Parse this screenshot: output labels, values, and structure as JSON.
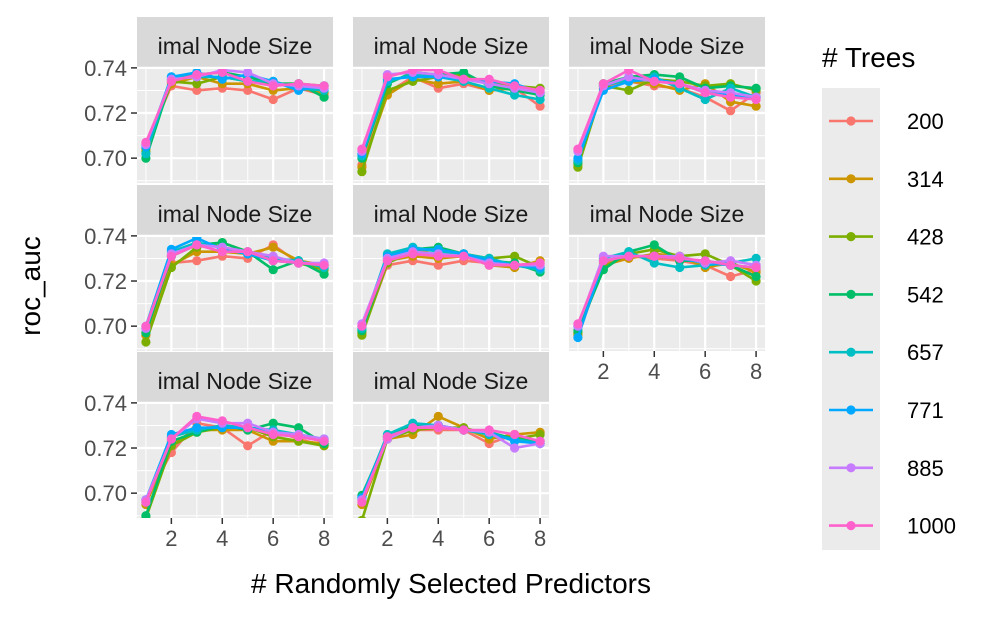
{
  "chart_data": {
    "type": "line",
    "facet_strip_label": "imal Node Size",
    "xlabel": "# Randomly Selected Predictors",
    "ylabel": "roc_auc",
    "x": [
      1,
      2,
      3,
      4,
      5,
      6,
      7,
      8
    ],
    "x_ticks": [
      "2",
      "4",
      "6",
      "8"
    ],
    "y_ticks": [
      "0.70",
      "0.72",
      "0.74"
    ],
    "ylim": [
      0.689,
      0.7395
    ],
    "xlim": [
      0.65,
      8.35
    ],
    "grid": true,
    "legend": {
      "title": "# Trees",
      "placement": "right",
      "entries": [
        "200",
        "314",
        "428",
        "542",
        "657",
        "771",
        "885",
        "1000"
      ]
    },
    "series_colors": [
      "#F8766D",
      "#CD9600",
      "#7CAE00",
      "#00BE67",
      "#00BFC4",
      "#00A9FF",
      "#C77CFF",
      "#FF61CC"
    ],
    "panels": [
      {
        "series": [
          {
            "name": "200",
            "values": [
              0.706,
              0.732,
              0.73,
              0.731,
              0.73,
              0.726,
              0.731,
              0.728
            ]
          },
          {
            "name": "314",
            "values": [
              0.704,
              0.733,
              0.736,
              0.733,
              0.733,
              0.73,
              0.731,
              0.729
            ]
          },
          {
            "name": "428",
            "values": [
              0.703,
              0.734,
              0.733,
              0.736,
              0.734,
              0.733,
              0.733,
              0.732
            ]
          },
          {
            "name": "542",
            "values": [
              0.7,
              0.735,
              0.737,
              0.738,
              0.736,
              0.733,
              0.733,
              0.727
            ]
          },
          {
            "name": "657",
            "values": [
              0.702,
              0.736,
              0.736,
              0.736,
              0.734,
              0.734,
              0.731,
              0.73
            ]
          },
          {
            "name": "771",
            "values": [
              0.705,
              0.736,
              0.738,
              0.735,
              0.737,
              0.734,
              0.73,
              0.732
            ]
          },
          {
            "name": "885",
            "values": [
              0.706,
              0.735,
              0.736,
              0.739,
              0.738,
              0.733,
              0.732,
              0.731
            ]
          },
          {
            "name": "1000",
            "values": [
              0.707,
              0.734,
              0.737,
              0.738,
              0.734,
              0.732,
              0.733,
              0.732
            ]
          }
        ]
      },
      {
        "series": [
          {
            "name": "200",
            "values": [
              0.697,
              0.729,
              0.736,
              0.731,
              0.733,
              0.73,
              0.731,
              0.723
            ]
          },
          {
            "name": "314",
            "values": [
              0.696,
              0.728,
              0.735,
              0.733,
              0.734,
              0.73,
              0.731,
              0.729
            ]
          },
          {
            "name": "428",
            "values": [
              0.694,
              0.73,
              0.734,
              0.736,
              0.737,
              0.733,
              0.732,
              0.731
            ]
          },
          {
            "name": "542",
            "values": [
              0.7,
              0.733,
              0.738,
              0.737,
              0.738,
              0.732,
              0.73,
              0.728
            ]
          },
          {
            "name": "657",
            "values": [
              0.701,
              0.734,
              0.737,
              0.736,
              0.734,
              0.731,
              0.728,
              0.726
            ]
          },
          {
            "name": "771",
            "values": [
              0.702,
              0.735,
              0.736,
              0.736,
              0.735,
              0.734,
              0.733,
              0.729
            ]
          },
          {
            "name": "885",
            "values": [
              0.703,
              0.737,
              0.738,
              0.737,
              0.735,
              0.733,
              0.731,
              0.729
            ]
          },
          {
            "name": "1000",
            "values": [
              0.704,
              0.736,
              0.739,
              0.739,
              0.735,
              0.735,
              0.732,
              0.73
            ]
          }
        ]
      },
      {
        "series": [
          {
            "name": "200",
            "values": [
              0.698,
              0.731,
              0.734,
              0.732,
              0.731,
              0.727,
              0.721,
              0.729
            ]
          },
          {
            "name": "314",
            "values": [
              0.697,
              0.733,
              0.734,
              0.733,
              0.73,
              0.733,
              0.725,
              0.723
            ]
          },
          {
            "name": "428",
            "values": [
              0.696,
              0.732,
              0.73,
              0.735,
              0.734,
              0.732,
              0.733,
              0.73
            ]
          },
          {
            "name": "542",
            "values": [
              0.698,
              0.733,
              0.736,
              0.737,
              0.736,
              0.731,
              0.732,
              0.731
            ]
          },
          {
            "name": "657",
            "values": [
              0.699,
              0.732,
              0.735,
              0.736,
              0.731,
              0.726,
              0.731,
              0.727
            ]
          },
          {
            "name": "771",
            "values": [
              0.7,
              0.73,
              0.734,
              0.735,
              0.733,
              0.729,
              0.728,
              0.727
            ]
          },
          {
            "name": "885",
            "values": [
              0.703,
              0.732,
              0.736,
              0.734,
              0.733,
              0.73,
              0.729,
              0.727
            ]
          },
          {
            "name": "1000",
            "values": [
              0.704,
              0.733,
              0.739,
              0.734,
              0.733,
              0.729,
              0.727,
              0.726
            ]
          }
        ]
      },
      {
        "series": [
          {
            "name": "200",
            "values": [
              0.697,
              0.728,
              0.729,
              0.731,
              0.73,
              0.736,
              0.728,
              0.727
            ]
          },
          {
            "name": "314",
            "values": [
              0.696,
              0.727,
              0.733,
              0.733,
              0.732,
              0.735,
              0.729,
              0.727
            ]
          },
          {
            "name": "428",
            "values": [
              0.693,
              0.726,
              0.735,
              0.737,
              0.733,
              0.729,
              0.728,
              0.725
            ]
          },
          {
            "name": "542",
            "values": [
              0.697,
              0.731,
              0.736,
              0.737,
              0.733,
              0.725,
              0.729,
              0.723
            ]
          },
          {
            "name": "657",
            "values": [
              0.699,
              0.733,
              0.737,
              0.735,
              0.732,
              0.73,
              0.729,
              0.726
            ]
          },
          {
            "name": "771",
            "values": [
              0.7,
              0.734,
              0.739,
              0.734,
              0.732,
              0.729,
              0.728,
              0.727
            ]
          },
          {
            "name": "885",
            "values": [
              0.699,
              0.732,
              0.736,
              0.735,
              0.733,
              0.731,
              0.728,
              0.728
            ]
          },
          {
            "name": "1000",
            "values": [
              0.7,
              0.731,
              0.736,
              0.733,
              0.733,
              0.729,
              0.728,
              0.727
            ]
          }
        ]
      },
      {
        "series": [
          {
            "name": "200",
            "values": [
              0.697,
              0.727,
              0.729,
              0.727,
              0.729,
              0.728,
              0.727,
              0.728
            ]
          },
          {
            "name": "314",
            "values": [
              0.697,
              0.729,
              0.731,
              0.73,
              0.731,
              0.727,
              0.726,
              0.729
            ]
          },
          {
            "name": "428",
            "values": [
              0.696,
              0.728,
              0.733,
              0.734,
              0.732,
              0.73,
              0.731,
              0.726
            ]
          },
          {
            "name": "542",
            "values": [
              0.698,
              0.73,
              0.734,
              0.735,
              0.732,
              0.729,
              0.728,
              0.724
            ]
          },
          {
            "name": "657",
            "values": [
              0.699,
              0.732,
              0.735,
              0.733,
              0.732,
              0.73,
              0.727,
              0.725
            ]
          },
          {
            "name": "771",
            "values": [
              0.7,
              0.731,
              0.734,
              0.734,
              0.732,
              0.729,
              0.727,
              0.726
            ]
          },
          {
            "name": "885",
            "values": [
              0.701,
              0.73,
              0.733,
              0.732,
              0.731,
              0.728,
              0.727,
              0.727
            ]
          },
          {
            "name": "1000",
            "values": [
              0.7,
              0.729,
              0.732,
              0.731,
              0.731,
              0.727,
              0.727,
              0.728
            ]
          }
        ]
      },
      {
        "series": [
          {
            "name": "200",
            "values": [
              0.697,
              0.728,
              0.731,
              0.73,
              0.729,
              0.727,
              0.722,
              0.725
            ]
          },
          {
            "name": "314",
            "values": [
              0.696,
              0.727,
              0.73,
              0.732,
              0.731,
              0.726,
              0.728,
              0.724
            ]
          },
          {
            "name": "428",
            "values": [
              0.697,
              0.726,
              0.732,
              0.734,
              0.731,
              0.732,
              0.727,
              0.72
            ]
          },
          {
            "name": "542",
            "values": [
              0.698,
              0.725,
              0.733,
              0.736,
              0.729,
              0.729,
              0.727,
              0.722
            ]
          },
          {
            "name": "657",
            "values": [
              0.7,
              0.73,
              0.733,
              0.728,
              0.726,
              0.727,
              0.728,
              0.73
            ]
          },
          {
            "name": "771",
            "values": [
              0.695,
              0.729,
              0.731,
              0.731,
              0.73,
              0.728,
              0.727,
              0.726
            ]
          },
          {
            "name": "885",
            "values": [
              0.7,
              0.731,
              0.731,
              0.731,
              0.731,
              0.728,
              0.729,
              0.727
            ]
          },
          {
            "name": "1000",
            "values": [
              0.701,
              0.729,
              0.731,
              0.731,
              0.73,
              0.729,
              0.727,
              0.726
            ]
          }
        ]
      },
      {
        "series": [
          {
            "name": "200",
            "values": [
              0.697,
              0.718,
              0.731,
              0.729,
              0.721,
              0.728,
              0.724,
              0.721
            ]
          },
          {
            "name": "314",
            "values": [
              0.695,
              0.722,
              0.728,
              0.728,
              0.728,
              0.723,
              0.723,
              0.722
            ]
          },
          {
            "name": "428",
            "values": [
              0.689,
              0.721,
              0.727,
              0.729,
              0.729,
              0.725,
              0.723,
              0.721
            ]
          },
          {
            "name": "542",
            "values": [
              0.69,
              0.723,
              0.727,
              0.73,
              0.728,
              0.731,
              0.729,
              0.722
            ]
          },
          {
            "name": "657",
            "values": [
              0.696,
              0.725,
              0.728,
              0.73,
              0.729,
              0.728,
              0.726,
              0.723
            ]
          },
          {
            "name": "771",
            "values": [
              0.697,
              0.726,
              0.729,
              0.729,
              0.729,
              0.727,
              0.726,
              0.724
            ]
          },
          {
            "name": "885",
            "values": [
              0.697,
              0.724,
              0.733,
              0.731,
              0.731,
              0.727,
              0.726,
              0.724
            ]
          },
          {
            "name": "1000",
            "values": [
              0.696,
              0.724,
              0.734,
              0.732,
              0.729,
              0.726,
              0.725,
              0.723
            ]
          }
        ]
      },
      {
        "series": [
          {
            "name": "200",
            "values": [
              0.697,
              0.725,
              0.728,
              0.728,
              0.728,
              0.722,
              0.726,
              0.722
            ]
          },
          {
            "name": "314",
            "values": [
              0.695,
              0.724,
              0.726,
              0.734,
              0.729,
              0.724,
              0.726,
              0.727
            ]
          },
          {
            "name": "428",
            "values": [
              0.688,
              0.724,
              0.728,
              0.729,
              0.729,
              0.726,
              0.724,
              0.726
            ]
          },
          {
            "name": "542",
            "values": [
              0.699,
              0.725,
              0.73,
              0.73,
              0.728,
              0.727,
              0.724,
              0.723
            ]
          },
          {
            "name": "657",
            "values": [
              0.698,
              0.726,
              0.731,
              0.73,
              0.728,
              0.726,
              0.724,
              0.722
            ]
          },
          {
            "name": "771",
            "values": [
              0.698,
              0.725,
              0.729,
              0.73,
              0.728,
              0.727,
              0.723,
              0.722
            ]
          },
          {
            "name": "885",
            "values": [
              0.697,
              0.724,
              0.729,
              0.73,
              0.728,
              0.727,
              0.72,
              0.722
            ]
          },
          {
            "name": "1000",
            "values": [
              0.696,
              0.725,
              0.729,
              0.729,
              0.728,
              0.728,
              0.726,
              0.723
            ]
          }
        ]
      }
    ]
  }
}
